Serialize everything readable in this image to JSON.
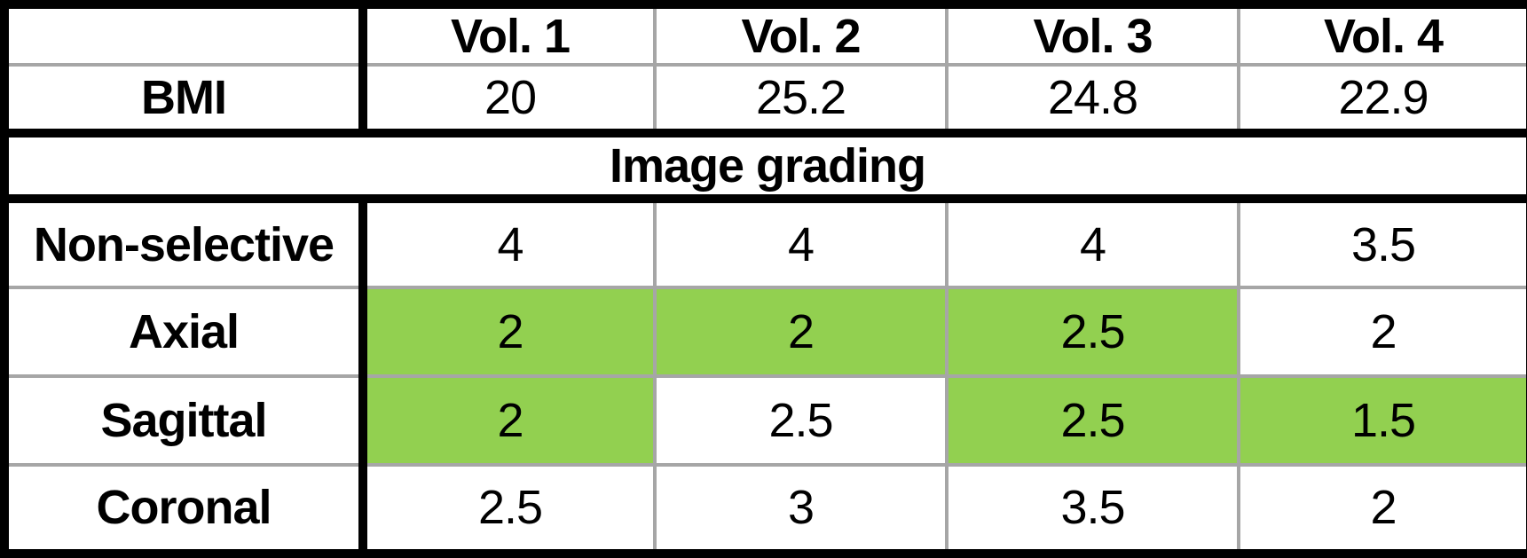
{
  "colors": {
    "highlight": "#92D050",
    "grid_line": "#A6A6A6",
    "heavy_line": "#000000",
    "text": "#000000",
    "background": "#FFFFFF"
  },
  "header": {
    "corner": "",
    "columns": [
      "Vol. 1",
      "Vol. 2",
      "Vol. 3",
      "Vol. 4"
    ]
  },
  "bmi_row": {
    "label": "BMI",
    "values": [
      "20",
      "25.2",
      "24.8",
      "22.9"
    ]
  },
  "section_title": "Image grading",
  "grading_rows": [
    {
      "label": "Non-selective",
      "values": [
        "4",
        "4",
        "4",
        "3.5"
      ],
      "highlighted": [
        false,
        false,
        false,
        false
      ]
    },
    {
      "label": "Axial",
      "values": [
        "2",
        "2",
        "2.5",
        "2"
      ],
      "highlighted": [
        true,
        true,
        true,
        false
      ]
    },
    {
      "label": "Sagittal",
      "values": [
        "2",
        "2.5",
        "2.5",
        "1.5"
      ],
      "highlighted": [
        true,
        false,
        true,
        true
      ]
    },
    {
      "label": "Coronal",
      "values": [
        "2.5",
        "3",
        "3.5",
        "2"
      ],
      "highlighted": [
        false,
        false,
        false,
        false
      ]
    }
  ],
  "chart_data": {
    "type": "table",
    "title": "Image grading",
    "columns": [
      "",
      "Vol. 1",
      "Vol. 2",
      "Vol. 3",
      "Vol. 4"
    ],
    "rows": [
      [
        "BMI",
        "20",
        "25.2",
        "24.8",
        "22.9"
      ],
      [
        "Non-selective",
        "4",
        "4",
        "4",
        "3.5"
      ],
      [
        "Axial",
        "2",
        "2",
        "2.5",
        "2"
      ],
      [
        "Sagittal",
        "2",
        "2.5",
        "2.5",
        "1.5"
      ],
      [
        "Coronal",
        "2.5",
        "3",
        "3.5",
        "2"
      ]
    ]
  }
}
